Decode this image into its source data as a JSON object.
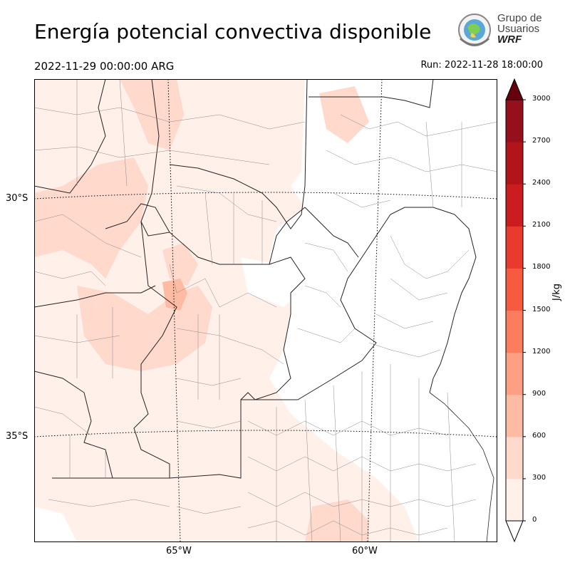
{
  "header": {
    "title": "Energía potencial convectiva disponible",
    "valid_time": "2022-11-29 00:00:00 ARG",
    "run_time": "Run: 2022-11-28 18:00:00"
  },
  "logo": {
    "line1": "Grupo de",
    "line2": "Usuarios",
    "line3": "WRF"
  },
  "map": {
    "lat_labels": [
      "30°S",
      "35°S"
    ],
    "lon_labels": [
      "65°W",
      "60°W"
    ]
  },
  "colorbar": {
    "unit": "J/kg",
    "ticks": [
      "0",
      "300",
      "600",
      "900",
      "1200",
      "1500",
      "1800",
      "2100",
      "2400",
      "2700",
      "3000"
    ],
    "colors": [
      "#fff0ea",
      "#fed9cc",
      "#fcbba2",
      "#fc9f82",
      "#fb7d5d",
      "#f65b3f",
      "#e83a2d",
      "#cb1c1f",
      "#b11419",
      "#95101c",
      "#78040f"
    ],
    "extend_high_color": "#67000d",
    "extend_low_color": "#ffffff"
  }
}
